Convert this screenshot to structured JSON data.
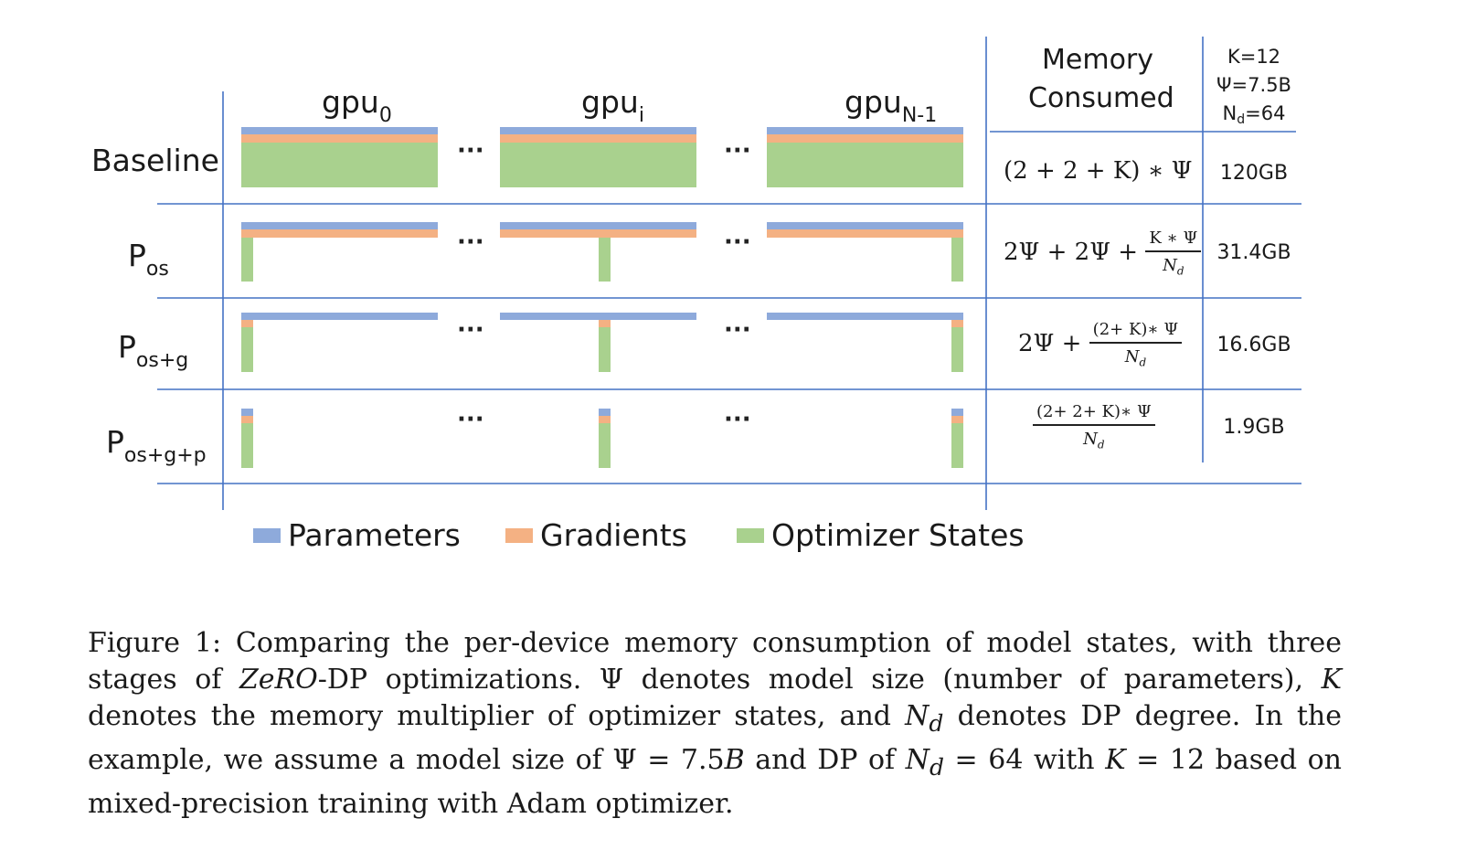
{
  "columns": {
    "gpu0": {
      "base": "gpu",
      "sub": "0"
    },
    "gpui": {
      "base": "gpu",
      "sub": "i"
    },
    "gpuN": {
      "base": "gpu",
      "sub": "N-1"
    },
    "memory_header_line1": "Memory",
    "memory_header_line2": "Consumed",
    "k_param": "K=12",
    "psi_param": "Ψ=7.5B",
    "nd_param_base": "N",
    "nd_param_sub": "d",
    "nd_param_rest": "=64"
  },
  "rows": [
    {
      "label_base": "Baseline",
      "label_sub": "",
      "formula": "(2 + 2 + K) ∗ Ψ",
      "memory": "120GB"
    },
    {
      "label_base": "P",
      "label_sub": "os",
      "formula_prefix": "2Ψ + 2Ψ +",
      "formula_num": "K ∗ Ψ",
      "formula_den": "N",
      "formula_den_sub": "d",
      "memory": "31.4GB"
    },
    {
      "label_base": "P",
      "label_sub": "os+g",
      "formula_prefix": "2Ψ +",
      "formula_num": "(2+ K)∗ Ψ",
      "formula_den": "N",
      "formula_den_sub": "d",
      "memory": "16.6GB"
    },
    {
      "label_base": "P",
      "label_sub": "os+g+p",
      "formula_prefix": "",
      "formula_num": "(2+ 2+ K)∗ Ψ",
      "formula_den": "N",
      "formula_den_sub": "d",
      "memory": "1.9GB"
    }
  ],
  "ellipsis": "···",
  "legend": [
    {
      "label": "Parameters",
      "color": "#8eaadb"
    },
    {
      "label": "Gradients",
      "color": "#f4b183"
    },
    {
      "label": "Optimizer States",
      "color": "#a9d18e"
    }
  ],
  "colors": {
    "line": "#4472c4",
    "params": "#8eaadb",
    "grads": "#f4b183",
    "opt": "#a9d18e"
  },
  "caption": {
    "p1": "Figure 1: Comparing the per-device memory consumption of model states, with three stages of ",
    "zero": "ZeRO",
    "p2": "-DP optimizations. Ψ denotes model size (number of parameters), ",
    "k": "K",
    "p3": " denotes the memory multiplier of optimizer states, and ",
    "nd": "N",
    "nd_sub": "d",
    "p4": " denotes DP degree. In the example, we assume a model size of Ψ = 7.5",
    "b": "B",
    "p5": " and DP of ",
    "nd2": "N",
    "nd2_sub": "d",
    "p6": " = 64 with ",
    "k2": "K",
    "p7": " = 12 based on mixed-precision training with Adam optimizer."
  }
}
